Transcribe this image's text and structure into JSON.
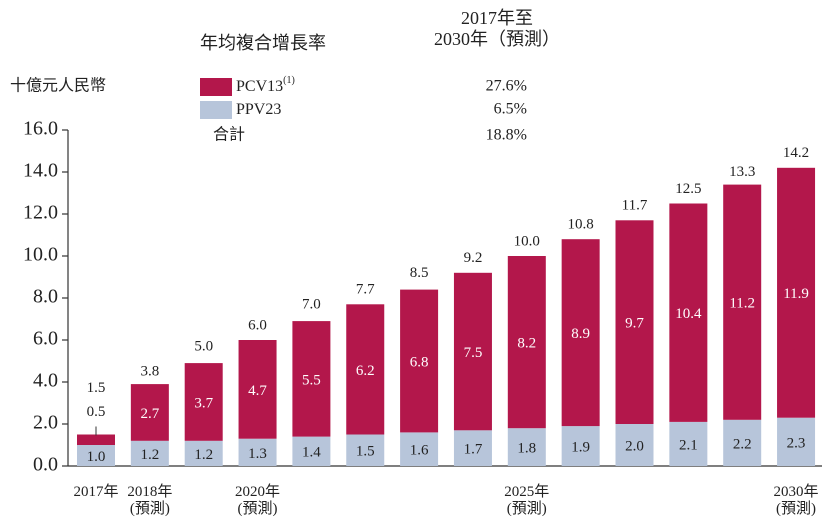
{
  "chart_data": {
    "type": "stacked_bar",
    "y_label": "十億元人民幣",
    "categories": [
      "2017年",
      "2018年\n(預測)",
      null,
      "2020年\n(預測)",
      null,
      null,
      null,
      null,
      "2025年\n(預測)",
      null,
      null,
      null,
      null,
      "2030年\n(預測)"
    ],
    "series": [
      {
        "name": "PPV23",
        "color": "#b7c5da",
        "values": [
          1.0,
          1.2,
          1.2,
          1.3,
          1.4,
          1.5,
          1.6,
          1.7,
          1.8,
          1.9,
          2.0,
          2.1,
          2.2,
          2.3
        ],
        "value_labels": [
          "1.0",
          "1.2",
          "1.2",
          "1.3",
          "1.4",
          "1.5",
          "1.6",
          "1.7",
          "1.8",
          "1.9",
          "2.0",
          "2.1",
          "2.2",
          "2.3"
        ]
      },
      {
        "name": "PCV13",
        "name_note": "(1)",
        "color": "#b3174b",
        "values": [
          0.5,
          2.7,
          3.7,
          4.7,
          5.5,
          6.2,
          6.8,
          7.5,
          8.2,
          8.9,
          9.7,
          10.4,
          11.2,
          11.9
        ],
        "value_labels": [
          "0.5",
          "2.7",
          "3.7",
          "4.7",
          "5.5",
          "6.2",
          "6.8",
          "7.5",
          "8.2",
          "8.9",
          "9.7",
          "10.4",
          "11.2",
          "11.9"
        ]
      }
    ],
    "totals": [
      1.5,
      3.8,
      5.0,
      6.0,
      7.0,
      7.7,
      8.5,
      9.2,
      10.0,
      10.8,
      11.7,
      12.5,
      13.3,
      14.2
    ],
    "total_labels": [
      "1.5",
      "3.8",
      "5.0",
      "6.0",
      "7.0",
      "7.7",
      "8.5",
      "9.2",
      "10.0",
      "10.8",
      "11.7",
      "12.5",
      "13.3",
      "14.2"
    ],
    "ylim": [
      0,
      16
    ],
    "yticks": [
      {
        "value": 0,
        "label": "0.0"
      },
      {
        "value": 2,
        "label": "2.0"
      },
      {
        "value": 4,
        "label": "4.0"
      },
      {
        "value": 6,
        "label": "6.0"
      },
      {
        "value": 8,
        "label": "8.0"
      },
      {
        "value": 10,
        "label": "10.0"
      },
      {
        "value": 12,
        "label": "12.0"
      },
      {
        "value": 14,
        "label": "14.0"
      },
      {
        "value": 16,
        "label": "16.0"
      }
    ],
    "growth_table": {
      "title": "年均複合增長率",
      "period": "2017年至\n2030年（預測）",
      "rates": [
        "6.5%",
        "27.6%"
      ],
      "total_label": "合計",
      "total_rate": "18.8%"
    }
  }
}
